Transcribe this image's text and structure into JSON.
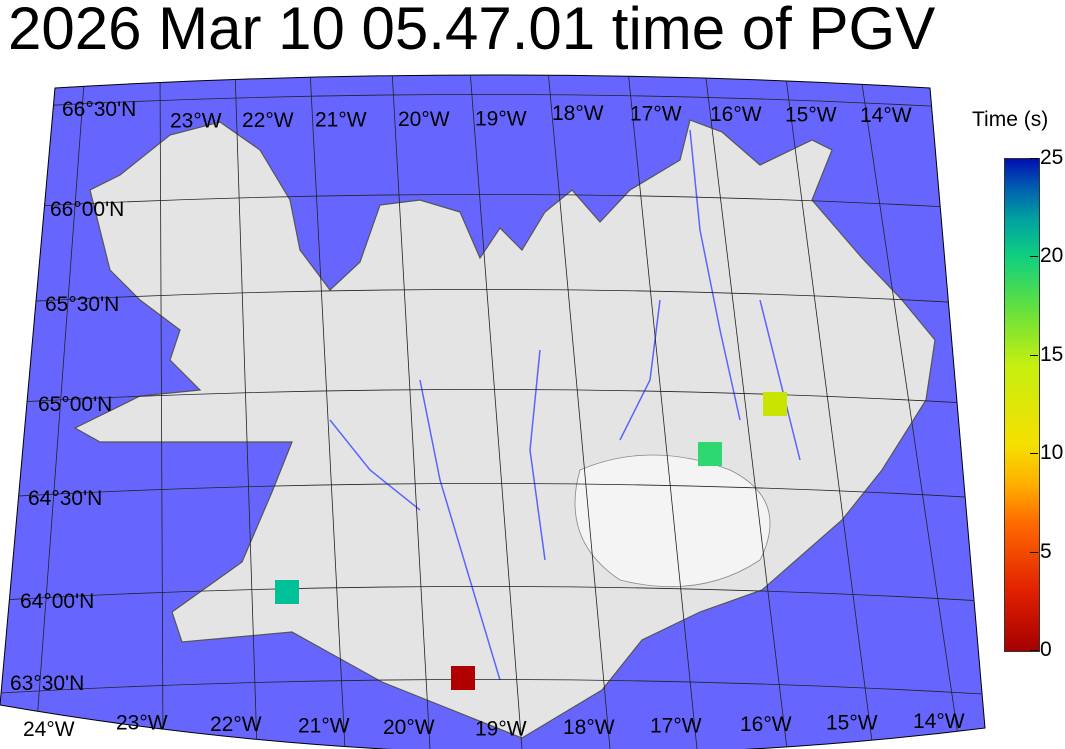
{
  "title": "2026 Mar 10 05.47.01 time of PGV",
  "colors": {
    "ocean": "#6666ff",
    "land": "#e6e6e6",
    "graticule": "#222222",
    "rivers": "#5a64ff"
  },
  "map": {
    "lon_labels_top": [
      "23°W",
      "22°W",
      "21°W",
      "20°W",
      "19°W",
      "18°W",
      "17°W",
      "16°W",
      "15°W",
      "14°W"
    ],
    "lon_labels_bottom": [
      "24°W",
      "23°W",
      "22°W",
      "21°W",
      "20°W",
      "19°W",
      "18°W",
      "17°W",
      "16°W",
      "15°W",
      "14°W"
    ],
    "lat_labels": [
      "66°30'N",
      "66°00'N",
      "65°30'N",
      "65°00'N",
      "64°30'N",
      "64°00'N",
      "63°30'N"
    ]
  },
  "stations": [
    {
      "time_s": 1,
      "color": "#b00000"
    },
    {
      "time_s": 21,
      "color": "#00c098"
    },
    {
      "time_s": 18,
      "color": "#2ed870"
    },
    {
      "time_s": 13.5,
      "color": "#c8e400"
    }
  ],
  "colorbar": {
    "title": "Time (s)",
    "min": 0,
    "max": 25,
    "ticks": [
      "0",
      "5",
      "10",
      "15",
      "20",
      "25"
    ],
    "colormap": "jet-reversed"
  }
}
